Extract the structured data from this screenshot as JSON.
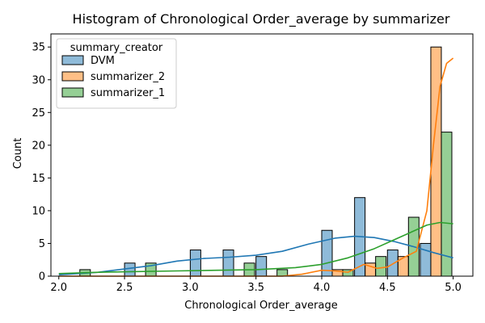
{
  "chart_data": {
    "type": "bar",
    "title": "Histogram of Chronological Order_average by summarizer",
    "xlabel": "Chronological Order_average",
    "ylabel": "Count",
    "xlim": [
      1.94,
      5.15
    ],
    "ylim": [
      0,
      37
    ],
    "x_ticks": [
      2.0,
      2.5,
      3.0,
      3.5,
      4.0,
      4.5,
      5.0
    ],
    "x_tick_labels": [
      "2.0",
      "2.5",
      "3.0",
      "3.5",
      "4.0",
      "4.5",
      "5.0"
    ],
    "y_ticks": [
      0,
      5,
      10,
      15,
      20,
      25,
      30,
      35
    ],
    "y_tick_labels": [
      "0",
      "5",
      "10",
      "15",
      "20",
      "25",
      "30",
      "35"
    ],
    "grid": false,
    "legend": {
      "title": "summary_creator",
      "placement": "top-left"
    },
    "series": [
      {
        "name": "DVM",
        "color": "#1f77b4",
        "bars": [
          {
            "x0": 2.5,
            "x1": 2.58,
            "count": 2
          },
          {
            "x0": 3.0,
            "x1": 3.08,
            "count": 4
          },
          {
            "x0": 3.25,
            "x1": 3.33,
            "count": 4
          },
          {
            "x0": 3.5,
            "x1": 3.58,
            "count": 3
          },
          {
            "x0": 4.0,
            "x1": 4.08,
            "count": 7
          },
          {
            "x0": 4.25,
            "x1": 4.33,
            "count": 12
          },
          {
            "x0": 4.5,
            "x1": 4.58,
            "count": 4
          },
          {
            "x0": 4.75,
            "x1": 4.83,
            "count": 5
          }
        ],
        "kde": [
          [
            2.0,
            0.2
          ],
          [
            2.3,
            0.6
          ],
          [
            2.5,
            1.1
          ],
          [
            2.7,
            1.6
          ],
          [
            2.9,
            2.3
          ],
          [
            3.1,
            2.7
          ],
          [
            3.3,
            2.9
          ],
          [
            3.5,
            3.2
          ],
          [
            3.7,
            3.8
          ],
          [
            3.9,
            4.9
          ],
          [
            4.1,
            5.8
          ],
          [
            4.25,
            6.1
          ],
          [
            4.4,
            5.9
          ],
          [
            4.55,
            5.3
          ],
          [
            4.7,
            4.5
          ],
          [
            4.85,
            3.6
          ],
          [
            5.0,
            2.8
          ]
        ]
      },
      {
        "name": "summarizer_2",
        "color": "#ff7f0e",
        "bars": [
          {
            "x0": 4.08,
            "x1": 4.16,
            "count": 1
          },
          {
            "x0": 4.33,
            "x1": 4.41,
            "count": 2
          },
          {
            "x0": 4.58,
            "x1": 4.66,
            "count": 3
          },
          {
            "x0": 4.83,
            "x1": 4.91,
            "count": 35
          }
        ],
        "kde": [
          [
            2.0,
            0.0
          ],
          [
            3.7,
            0.0
          ],
          [
            3.85,
            0.3
          ],
          [
            4.0,
            0.9
          ],
          [
            4.1,
            0.8
          ],
          [
            4.2,
            0.6
          ],
          [
            4.32,
            1.8
          ],
          [
            4.42,
            1.2
          ],
          [
            4.5,
            1.4
          ],
          [
            4.62,
            2.8
          ],
          [
            4.72,
            3.8
          ],
          [
            4.8,
            10.0
          ],
          [
            4.85,
            20.0
          ],
          [
            4.9,
            29.0
          ],
          [
            4.95,
            32.5
          ],
          [
            5.0,
            33.3
          ]
        ]
      },
      {
        "name": "summarizer_1",
        "color": "#2ca02c",
        "bars": [
          {
            "x0": 2.16,
            "x1": 2.24,
            "count": 1
          },
          {
            "x0": 2.66,
            "x1": 2.74,
            "count": 2
          },
          {
            "x0": 3.41,
            "x1": 3.49,
            "count": 2
          },
          {
            "x0": 3.66,
            "x1": 3.74,
            "count": 1
          },
          {
            "x0": 4.16,
            "x1": 4.24,
            "count": 1
          },
          {
            "x0": 4.41,
            "x1": 4.49,
            "count": 3
          },
          {
            "x0": 4.66,
            "x1": 4.74,
            "count": 9
          },
          {
            "x0": 4.91,
            "x1": 4.99,
            "count": 22
          }
        ],
        "kde": [
          [
            2.0,
            0.4
          ],
          [
            2.3,
            0.6
          ],
          [
            2.6,
            0.7
          ],
          [
            2.9,
            0.8
          ],
          [
            3.2,
            0.9
          ],
          [
            3.5,
            1.0
          ],
          [
            3.8,
            1.3
          ],
          [
            4.0,
            1.8
          ],
          [
            4.2,
            2.8
          ],
          [
            4.4,
            4.2
          ],
          [
            4.6,
            6.0
          ],
          [
            4.8,
            7.8
          ],
          [
            4.9,
            8.2
          ],
          [
            5.0,
            8.0
          ]
        ]
      }
    ]
  }
}
